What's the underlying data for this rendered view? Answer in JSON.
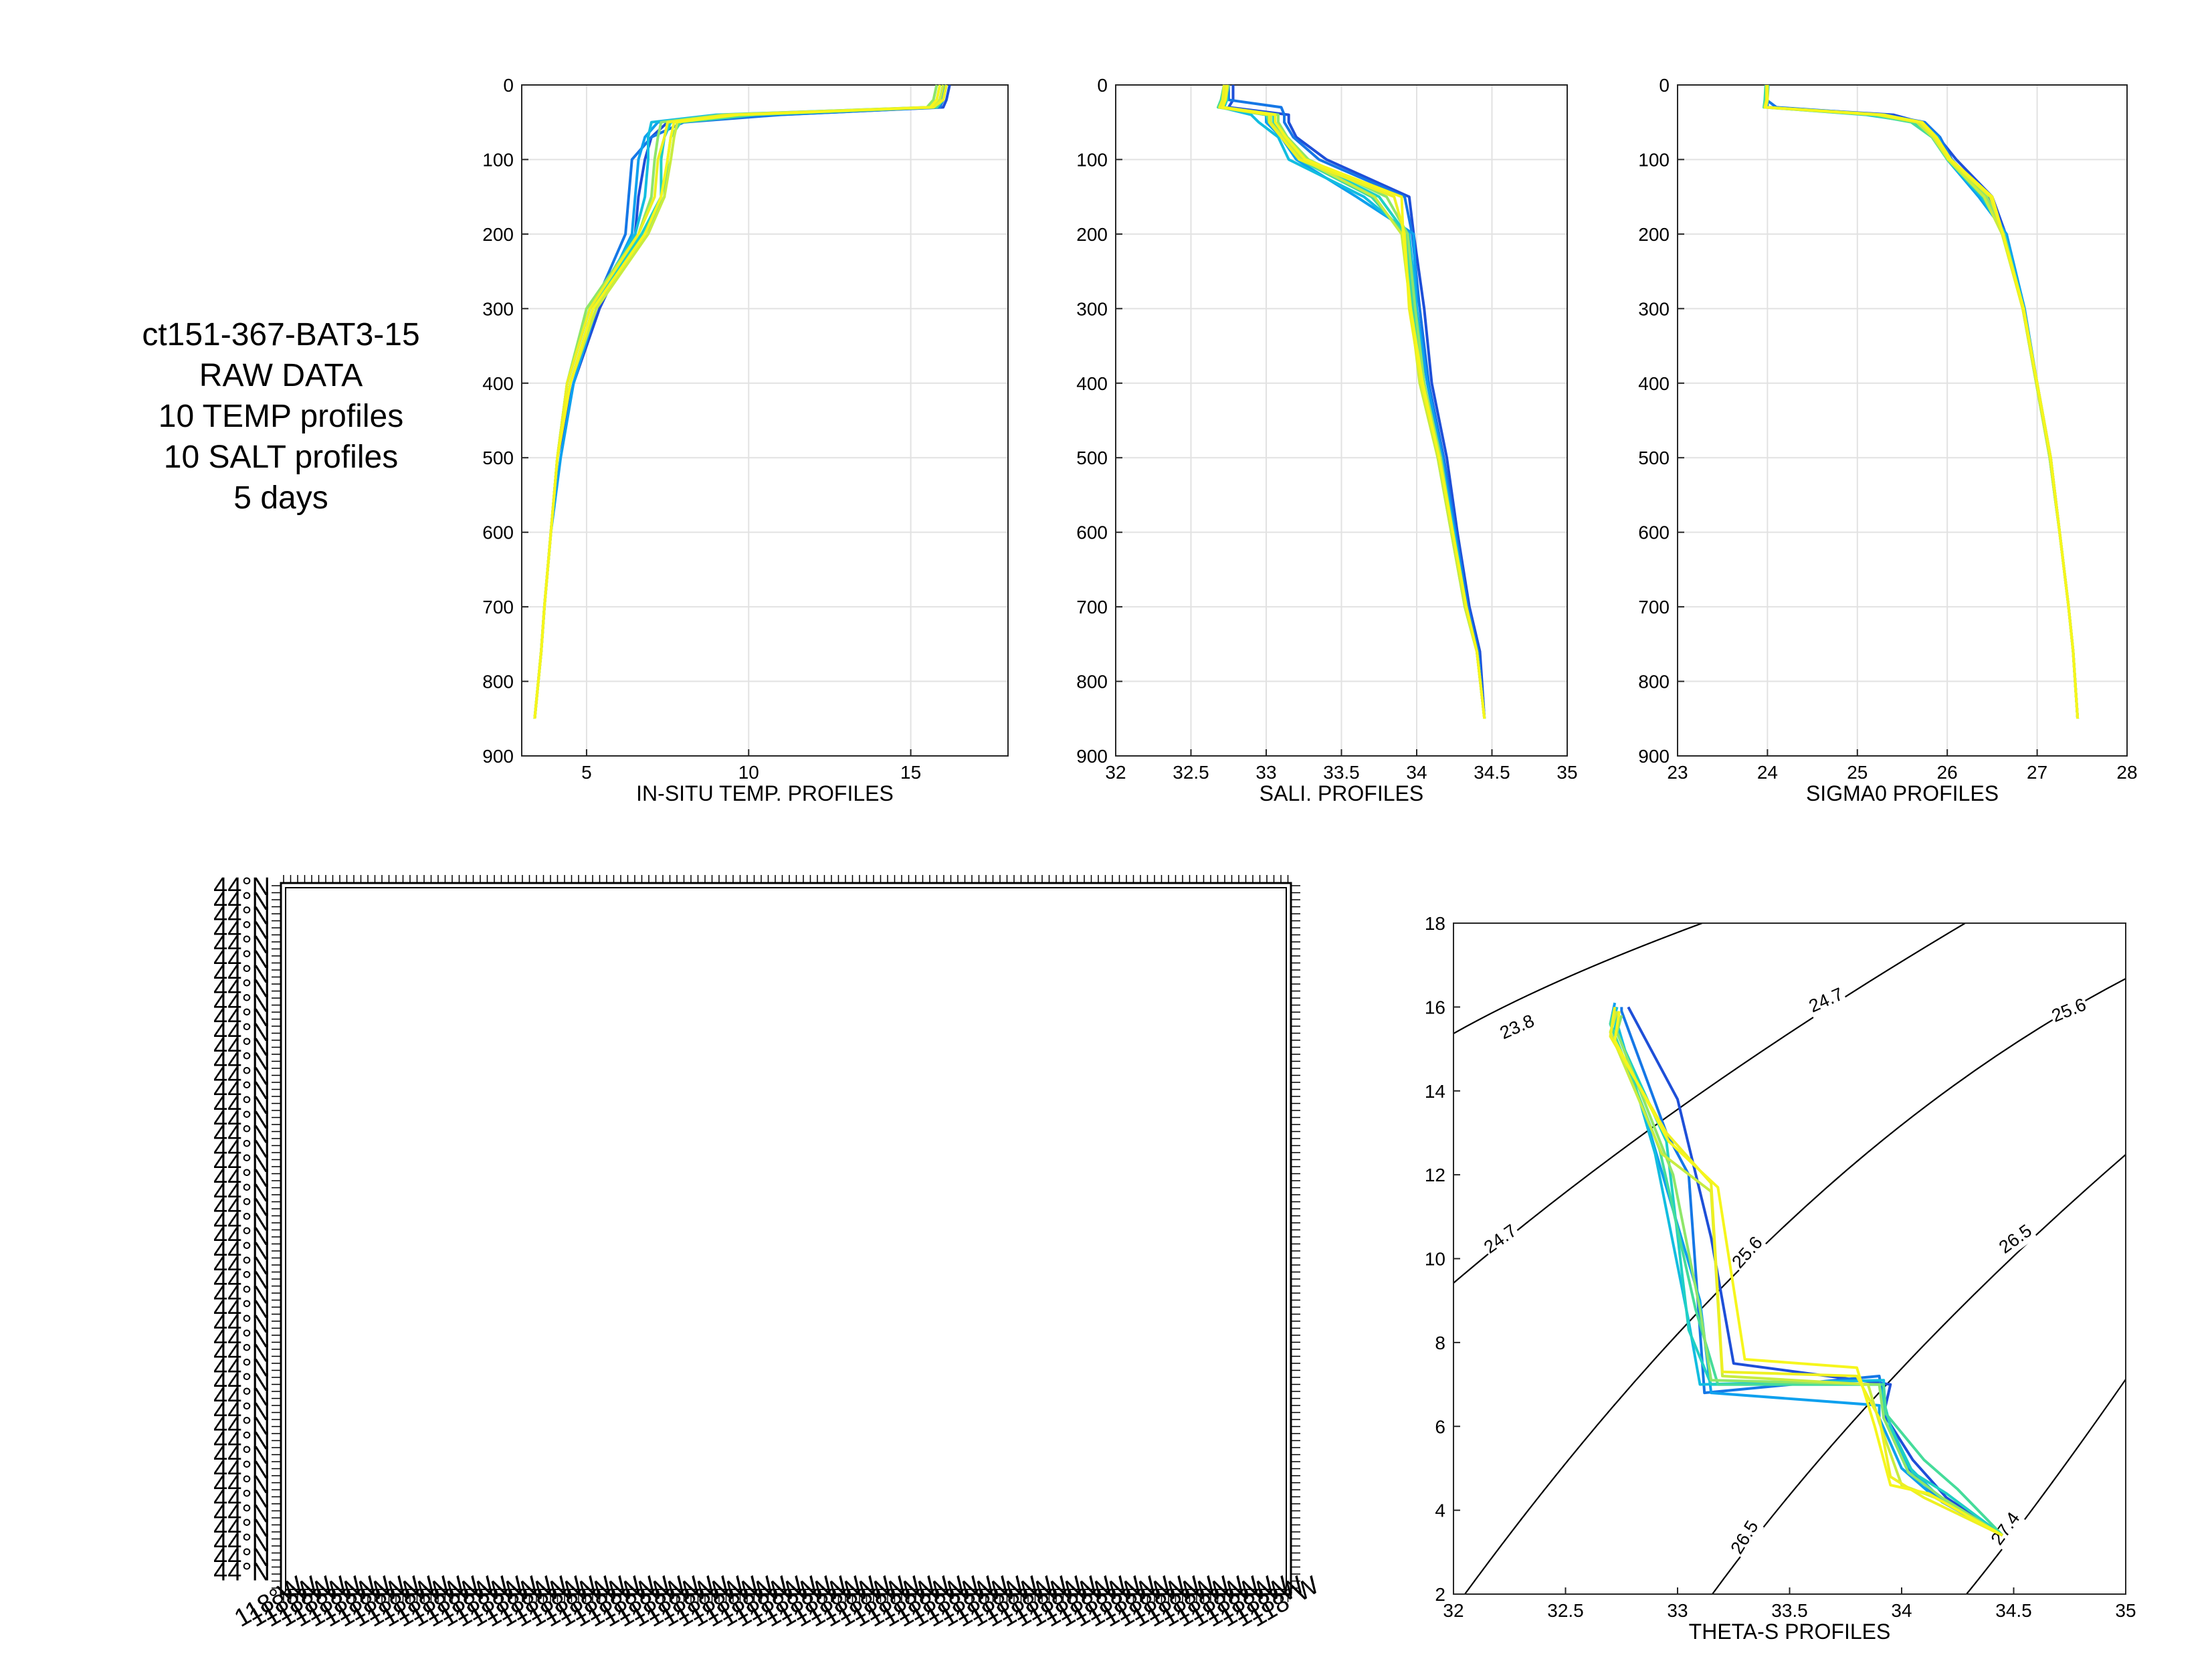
{
  "info_lines": [
    "ct151-367-BAT3-15",
    "RAW DATA",
    "10 TEMP profiles",
    "10 SALT profiles",
    "5 days"
  ],
  "profile_colors": [
    "#1e4fd8",
    "#1577e6",
    "#0ea0ee",
    "#12bde0",
    "#1fd0c4",
    "#45dc9a",
    "#8ee66a",
    "#c8ec40",
    "#eef022",
    "#f6f61c"
  ],
  "depth": [
    0,
    20,
    30,
    40,
    50,
    70,
    100,
    150,
    200,
    300,
    400,
    500,
    600,
    700,
    760,
    850
  ],
  "chart_data": [
    {
      "type": "line",
      "xlabel": "IN-SITU TEMP. PROFILES",
      "xlim": [
        3,
        18
      ],
      "xticks": [
        5,
        10,
        15
      ],
      "ylim": [
        0,
        900
      ],
      "yticks": [
        0,
        100,
        200,
        300,
        400,
        500,
        600,
        700,
        800,
        900
      ],
      "grid": true,
      "y_reversed": true,
      "series": [
        {
          "values": [
            16.2,
            16.1,
            16.0,
            10.9,
            7.5,
            7.0,
            6.8,
            6.6,
            6.5,
            5.4,
            4.6,
            4.1,
            3.9,
            3.7,
            3.6,
            3.4
          ]
        },
        {
          "values": [
            16.0,
            16.0,
            15.9,
            11.0,
            8.0,
            7.0,
            6.4,
            6.3,
            6.2,
            5.2,
            4.5,
            4.1,
            3.9,
            3.7,
            3.6,
            3.4
          ]
        },
        {
          "values": [
            16.1,
            15.9,
            15.8,
            9.5,
            7.2,
            6.8,
            6.6,
            6.5,
            6.4,
            5.3,
            4.6,
            4.2,
            3.9,
            3.7,
            3.6,
            3.4
          ]
        },
        {
          "values": [
            15.9,
            15.8,
            15.6,
            9.0,
            7.0,
            6.9,
            6.9,
            6.8,
            6.5,
            5.1,
            4.4,
            4.1,
            3.9,
            3.7,
            3.6,
            3.4
          ]
        },
        {
          "values": [
            16.0,
            15.9,
            15.7,
            9.8,
            7.6,
            7.4,
            7.3,
            7.3,
            6.7,
            5.1,
            4.4,
            4.1,
            3.9,
            3.7,
            3.6,
            3.4
          ]
        },
        {
          "values": [
            16.1,
            16.0,
            15.8,
            10.2,
            7.9,
            7.6,
            7.5,
            7.4,
            6.8,
            5.2,
            4.5,
            4.1,
            3.9,
            3.7,
            3.6,
            3.4
          ]
        },
        {
          "values": [
            15.8,
            15.7,
            15.5,
            9.2,
            7.3,
            7.2,
            7.1,
            7.0,
            6.6,
            5.0,
            4.4,
            4.1,
            3.9,
            3.7,
            3.6,
            3.4
          ]
        },
        {
          "values": [
            16.0,
            15.9,
            15.6,
            9.6,
            7.8,
            7.7,
            7.6,
            7.4,
            6.9,
            5.3,
            4.5,
            4.1,
            3.9,
            3.7,
            3.6,
            3.4
          ]
        },
        {
          "values": [
            16.1,
            16.0,
            15.7,
            9.4,
            7.5,
            7.4,
            7.2,
            7.1,
            6.6,
            5.1,
            4.4,
            4.1,
            3.9,
            3.7,
            3.6,
            3.4
          ]
        },
        {
          "values": [
            15.9,
            15.8,
            15.6,
            9.7,
            7.7,
            7.6,
            7.5,
            7.3,
            6.8,
            5.2,
            4.5,
            4.1,
            3.9,
            3.7,
            3.6,
            3.4
          ]
        }
      ]
    },
    {
      "type": "line",
      "xlabel": "SALI. PROFILES",
      "xlim": [
        32,
        35
      ],
      "xticks": [
        32,
        32.5,
        33,
        33.5,
        34,
        34.5,
        35
      ],
      "ylim": [
        0,
        900
      ],
      "yticks": [
        0,
        100,
        200,
        300,
        400,
        500,
        600,
        700,
        800,
        900
      ],
      "grid": true,
      "y_reversed": true,
      "series": [
        {
          "values": [
            32.78,
            32.78,
            32.75,
            33.15,
            33.15,
            33.2,
            33.4,
            33.95,
            33.98,
            34.05,
            34.1,
            34.2,
            34.27,
            34.35,
            34.42,
            34.45
          ]
        },
        {
          "values": [
            32.75,
            32.75,
            33.1,
            33.12,
            33.12,
            33.18,
            33.35,
            33.92,
            33.97,
            34.02,
            34.08,
            34.18,
            34.26,
            34.34,
            34.41,
            34.45
          ]
        },
        {
          "values": [
            32.72,
            32.72,
            32.7,
            33.0,
            33.0,
            33.1,
            33.2,
            33.6,
            33.98,
            34.0,
            34.07,
            34.17,
            34.25,
            34.33,
            34.4,
            34.45
          ]
        },
        {
          "values": [
            32.73,
            32.72,
            32.7,
            32.9,
            32.95,
            33.08,
            33.15,
            33.65,
            33.95,
            34.0,
            34.05,
            34.15,
            34.25,
            34.33,
            34.4,
            34.45
          ]
        },
        {
          "values": [
            32.74,
            32.74,
            32.72,
            33.05,
            33.05,
            33.12,
            33.25,
            33.75,
            33.93,
            33.98,
            34.04,
            34.15,
            34.24,
            34.32,
            34.4,
            34.45
          ]
        },
        {
          "values": [
            32.72,
            32.7,
            32.68,
            33.0,
            33.02,
            33.1,
            33.22,
            33.7,
            33.92,
            33.97,
            34.03,
            34.14,
            34.23,
            34.32,
            34.4,
            34.45
          ]
        },
        {
          "values": [
            32.75,
            32.73,
            32.71,
            33.08,
            33.08,
            33.14,
            33.28,
            33.8,
            33.94,
            33.99,
            34.05,
            34.16,
            34.24,
            34.33,
            34.4,
            34.45
          ]
        },
        {
          "values": [
            32.73,
            32.72,
            32.7,
            33.03,
            33.03,
            33.11,
            33.24,
            33.72,
            33.9,
            33.96,
            34.02,
            34.14,
            34.23,
            34.32,
            34.4,
            34.45
          ]
        },
        {
          "values": [
            32.72,
            32.71,
            32.69,
            33.02,
            33.02,
            33.1,
            33.22,
            33.85,
            33.92,
            33.95,
            34.03,
            34.15,
            34.24,
            34.33,
            34.4,
            34.45
          ]
        },
        {
          "values": [
            32.74,
            32.73,
            32.71,
            33.06,
            33.06,
            33.13,
            33.26,
            33.9,
            33.91,
            33.96,
            34.04,
            34.15,
            34.24,
            34.33,
            34.4,
            34.45
          ]
        }
      ]
    },
    {
      "type": "line",
      "xlabel": "SIGMA0 PROFILES",
      "xlim": [
        23,
        28
      ],
      "xticks": [
        23,
        24,
        25,
        26,
        27,
        28
      ],
      "ylim": [
        0,
        900
      ],
      "yticks": [
        0,
        100,
        200,
        300,
        400,
        500,
        600,
        700,
        800,
        900
      ],
      "grid": true,
      "y_reversed": true,
      "series": [
        {
          "values": [
            24.0,
            24.0,
            24.0,
            25.4,
            25.7,
            25.9,
            26.1,
            26.5,
            26.65,
            26.85,
            27.0,
            27.15,
            27.25,
            27.35,
            27.4,
            27.45
          ]
        },
        {
          "values": [
            23.98,
            23.99,
            24.1,
            25.3,
            25.75,
            25.92,
            26.05,
            26.45,
            26.65,
            26.85,
            27.0,
            27.15,
            27.25,
            27.35,
            27.4,
            27.45
          ]
        },
        {
          "values": [
            24.0,
            24.0,
            23.98,
            25.2,
            25.7,
            25.9,
            26.0,
            26.35,
            26.66,
            26.86,
            27.0,
            27.15,
            27.25,
            27.35,
            27.4,
            27.45
          ]
        },
        {
          "values": [
            24.01,
            24.0,
            23.99,
            25.1,
            25.65,
            25.88,
            26.0,
            26.38,
            26.64,
            26.85,
            27.0,
            27.14,
            27.25,
            27.35,
            27.4,
            27.45
          ]
        },
        {
          "values": [
            24.0,
            24.0,
            23.99,
            25.25,
            25.62,
            25.85,
            26.02,
            26.42,
            26.62,
            26.84,
            26.99,
            27.14,
            27.25,
            27.35,
            27.4,
            27.45
          ]
        },
        {
          "values": [
            23.98,
            23.97,
            23.96,
            25.15,
            25.6,
            25.83,
            26.0,
            26.4,
            26.62,
            26.84,
            26.99,
            27.14,
            27.25,
            27.35,
            27.4,
            27.45
          ]
        },
        {
          "values": [
            24.0,
            24.0,
            23.98,
            25.3,
            25.68,
            25.87,
            26.03,
            26.44,
            26.63,
            26.85,
            27.0,
            27.15,
            27.25,
            27.35,
            27.4,
            27.45
          ]
        },
        {
          "values": [
            23.99,
            23.99,
            23.97,
            25.22,
            25.66,
            25.84,
            26.01,
            26.41,
            26.61,
            26.84,
            26.99,
            27.14,
            27.25,
            27.35,
            27.4,
            27.45
          ]
        },
        {
          "values": [
            23.99,
            23.99,
            23.97,
            25.25,
            25.7,
            25.86,
            26.02,
            26.48,
            26.62,
            26.84,
            27.0,
            27.15,
            27.25,
            27.35,
            27.4,
            27.45
          ]
        },
        {
          "values": [
            24.0,
            24.0,
            23.98,
            25.28,
            25.72,
            25.88,
            26.04,
            26.5,
            26.62,
            26.85,
            27.0,
            27.15,
            27.25,
            27.35,
            27.4,
            27.45
          ]
        }
      ]
    },
    {
      "type": "line",
      "xlabel": "THETA-S PROFILES",
      "xlim": [
        32,
        35
      ],
      "xticks": [
        32,
        32.5,
        33,
        33.5,
        34,
        34.5,
        35
      ],
      "ylim": [
        2,
        18
      ],
      "yticks": [
        2,
        4,
        6,
        8,
        10,
        12,
        14,
        16,
        18
      ],
      "grid": false,
      "contour_labels": [
        "23.8",
        "24.7",
        "24.7",
        "25.6",
        "25.6",
        "26.5",
        "26.5",
        "27.4"
      ],
      "series": [
        {
          "salinity": [
            32.78,
            32.8,
            33.0,
            33.15,
            33.25,
            33.95,
            33.92,
            34.05,
            34.2,
            34.45
          ],
          "theta": [
            16.0,
            15.8,
            13.8,
            10.5,
            7.5,
            7.0,
            6.3,
            5.2,
            4.3,
            3.4
          ]
        },
        {
          "salinity": [
            32.75,
            32.75,
            32.95,
            33.05,
            33.12,
            33.9,
            33.93,
            34.03,
            34.18,
            34.45
          ],
          "theta": [
            16.0,
            15.9,
            13.0,
            12.0,
            6.8,
            7.2,
            6.3,
            5.0,
            4.2,
            3.4
          ]
        },
        {
          "salinity": [
            32.72,
            32.7,
            32.85,
            33.1,
            33.15,
            33.9,
            33.9,
            34.0,
            34.15,
            34.45
          ],
          "theta": [
            16.1,
            15.6,
            13.5,
            9.0,
            6.8,
            6.5,
            6.2,
            5.0,
            4.3,
            3.4
          ]
        },
        {
          "salinity": [
            32.73,
            32.72,
            32.9,
            33.05,
            33.1,
            33.92,
            33.92,
            34.02,
            34.17,
            34.45
          ],
          "theta": [
            16.0,
            15.8,
            12.5,
            8.5,
            7.0,
            7.1,
            6.2,
            5.1,
            4.3,
            3.4
          ]
        },
        {
          "salinity": [
            32.74,
            32.72,
            32.95,
            33.05,
            33.15,
            33.9,
            33.95,
            34.05,
            34.2,
            34.45
          ],
          "theta": [
            15.9,
            15.5,
            12.8,
            8.3,
            7.0,
            7.0,
            6.0,
            4.9,
            4.4,
            3.4
          ]
        },
        {
          "salinity": [
            32.72,
            32.7,
            32.92,
            33.08,
            33.18,
            33.92,
            33.93,
            34.1,
            34.25,
            34.45
          ],
          "theta": [
            16.0,
            15.6,
            12.6,
            8.8,
            7.0,
            7.0,
            6.3,
            5.2,
            4.5,
            3.4
          ]
        },
        {
          "salinity": [
            32.75,
            32.73,
            32.98,
            33.1,
            33.15,
            33.9,
            33.92,
            34.03,
            34.18,
            34.45
          ],
          "theta": [
            15.8,
            15.4,
            12.0,
            8.8,
            7.1,
            7.0,
            6.2,
            4.9,
            4.3,
            3.4
          ]
        },
        {
          "salinity": [
            32.73,
            32.7,
            32.93,
            33.15,
            33.2,
            33.85,
            33.9,
            34.0,
            34.15,
            34.45
          ],
          "theta": [
            15.9,
            15.4,
            12.5,
            11.6,
            7.2,
            7.0,
            6.1,
            4.6,
            4.3,
            3.4
          ]
        },
        {
          "salinity": [
            32.72,
            32.7,
            32.95,
            33.15,
            33.2,
            33.8,
            33.9,
            33.95,
            34.1,
            34.45
          ],
          "theta": [
            16.0,
            15.3,
            13.0,
            11.8,
            7.3,
            7.2,
            6.2,
            4.8,
            4.3,
            3.4
          ]
        },
        {
          "salinity": [
            32.74,
            32.72,
            32.96,
            33.18,
            33.3,
            33.8,
            33.88,
            33.95,
            34.12,
            34.45
          ],
          "theta": [
            15.9,
            15.2,
            12.8,
            11.7,
            7.6,
            7.4,
            6.0,
            4.6,
            4.4,
            3.4
          ]
        }
      ]
    }
  ],
  "map_panel": {
    "left_tick_label": "44°N",
    "bottom_tick_label": "118°W"
  }
}
